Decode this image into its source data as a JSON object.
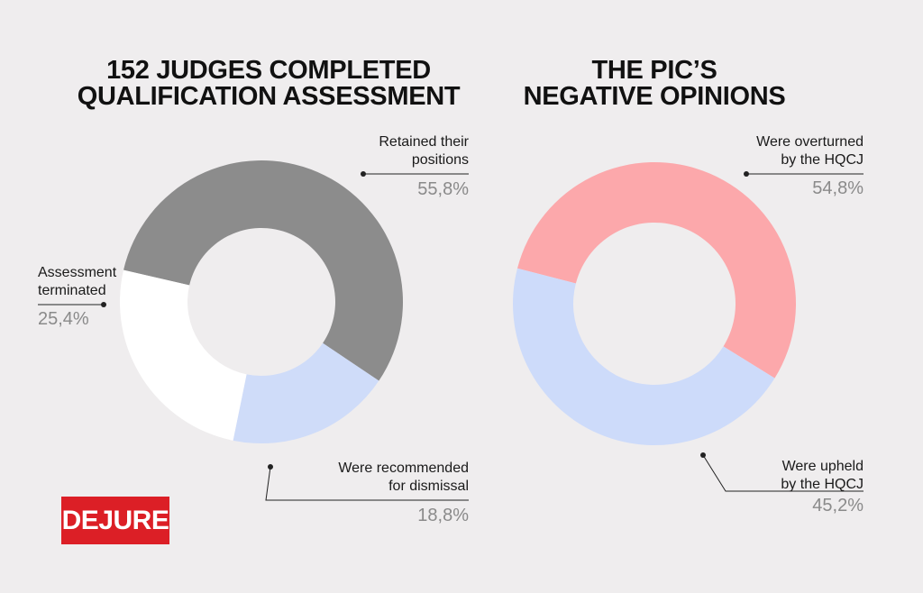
{
  "chart_data": [
    {
      "type": "pie",
      "title": "152 JUDGES COMPLETED\nQUALIFICATION ASSESSMENT",
      "categories": [
        "Retained their\npositions",
        "Were recommended\nfor dismissal",
        "Assessment\nterminated"
      ],
      "values": [
        55.8,
        18.8,
        25.4
      ],
      "value_labels": [
        "55,8%",
        "18,8%",
        "25,4%"
      ],
      "colors": [
        "#8c8c8c",
        "#cfdcf9",
        "#ffffff"
      ]
    },
    {
      "type": "pie",
      "title": "THE PIC’S\nNEGATIVE OPINIONS",
      "categories": [
        "Were overturned\nby the HQCJ",
        "Were upheld\nby the HQCJ"
      ],
      "values": [
        54.8,
        45.2
      ],
      "value_labels": [
        "54,8%",
        "45,2%"
      ],
      "colors": [
        "#fca8ab",
        "#cddbfa"
      ]
    }
  ],
  "logo": "DEJURE"
}
